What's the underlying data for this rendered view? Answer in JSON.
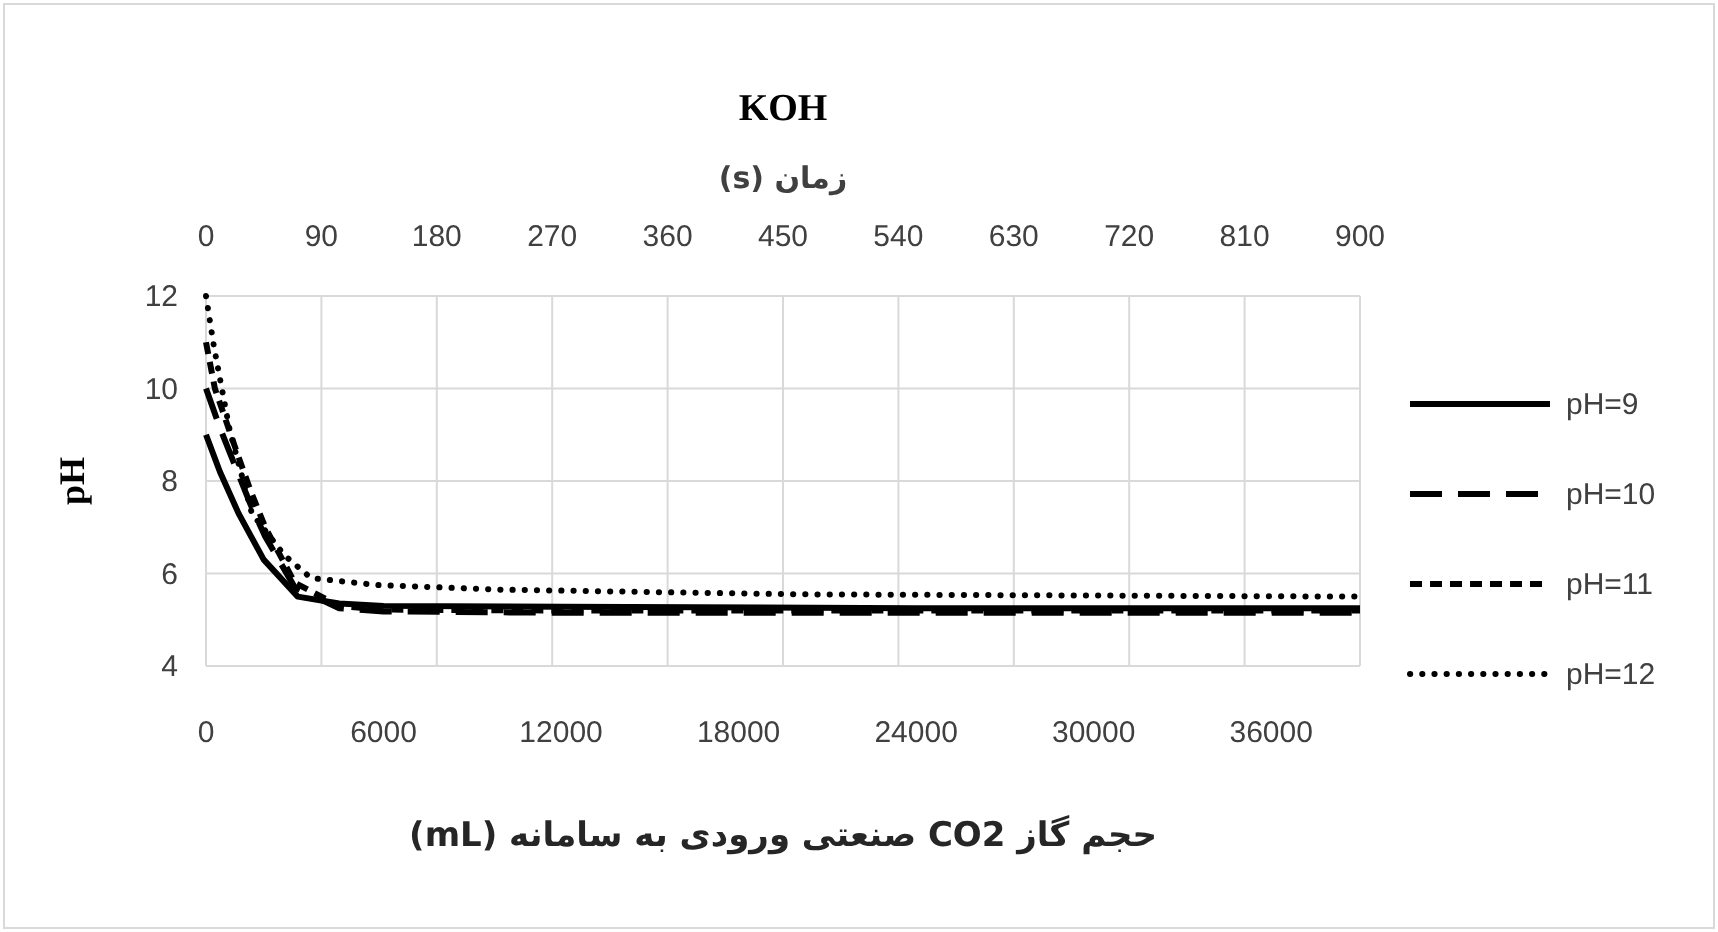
{
  "chart_data": {
    "type": "line",
    "title": "KOH",
    "x2label": "زمان (s)",
    "xlabel": "حجم گاز CO2 صنعتی ورودی به سامانه (mL)",
    "ylabel": "pH",
    "xlim": [
      0,
      39000
    ],
    "xticks": [
      0,
      6000,
      12000,
      18000,
      24000,
      30000,
      36000
    ],
    "x2lim": [
      0,
      900
    ],
    "x2ticks": [
      0,
      90,
      180,
      270,
      360,
      450,
      540,
      630,
      720,
      810,
      900
    ],
    "ylim": [
      4,
      12
    ],
    "yticks": [
      4,
      6,
      8,
      10,
      12
    ],
    "grid": "x2y",
    "legend": "right",
    "series": [
      {
        "name": "pH=9",
        "color": "#000000",
        "line_style": "solid",
        "x": [
          0,
          470,
          1100,
          1950,
          3100,
          4500,
          6000,
          12000,
          24000,
          39000
        ],
        "values": [
          9.0,
          8.2,
          7.3,
          6.3,
          5.5,
          5.35,
          5.3,
          5.28,
          5.25,
          5.25
        ]
      },
      {
        "name": "pH=10",
        "color": "#000000",
        "line_style": "long-dash",
        "x": [
          0,
          500,
          1000,
          1500,
          2000,
          3000,
          4500,
          6000,
          12000,
          24000,
          39000
        ],
        "values": [
          10.0,
          9.1,
          8.3,
          7.5,
          6.8,
          5.7,
          5.25,
          5.18,
          5.15,
          5.15,
          5.15
        ]
      },
      {
        "name": "pH=11",
        "color": "#000000",
        "line_style": "dashed",
        "x": [
          0,
          300,
          1000,
          1500,
          2000,
          3000,
          4500,
          6000,
          12000,
          24000,
          39000
        ],
        "values": [
          11.0,
          10.0,
          8.7,
          7.8,
          7.0,
          5.8,
          5.3,
          5.22,
          5.2,
          5.2,
          5.2
        ]
      },
      {
        "name": "pH=12",
        "color": "#000000",
        "line_style": "dotted",
        "x": [
          0,
          270,
          800,
          1550,
          2640,
          3550,
          5800,
          10000,
          20000,
          39000
        ],
        "values": [
          12.0,
          10.9,
          9.1,
          7.3,
          6.4,
          5.9,
          5.75,
          5.65,
          5.55,
          5.5
        ]
      }
    ]
  }
}
